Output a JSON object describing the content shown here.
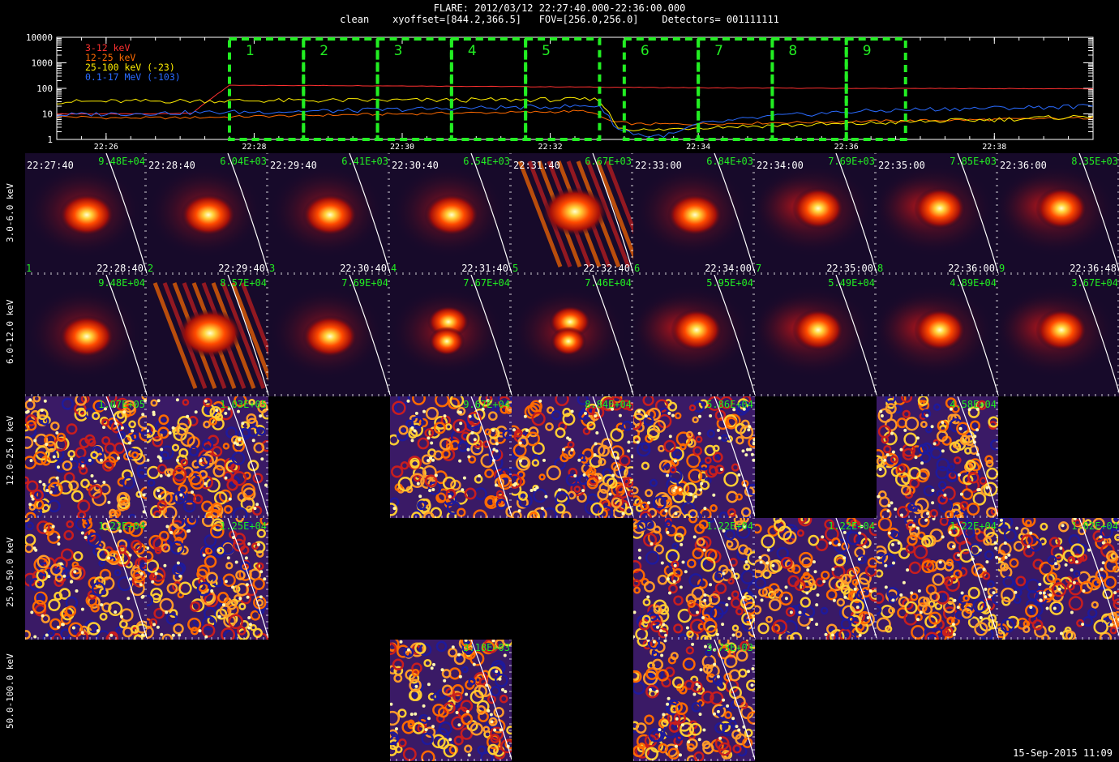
{
  "header": {
    "title_line1": "FLARE: 2012/03/12 22:27:40.000-22:36:00.000",
    "title_line2": "clean    xyoffset=[844.2,366.5]   FOV=[256.0,256.0]    Detectors= 001111111"
  },
  "colors": {
    "low_3_12": "#ff3030",
    "mid_12_25": "#ff6a00",
    "hi_25_100": "#ffee00",
    "gamma": "#2a6bff",
    "box": "#22ee22",
    "maxlabel": "#22ee22"
  },
  "chart_data": [
    {
      "type": "line",
      "title": "",
      "ylabel": "",
      "y_scale": "log",
      "ylim": [
        1,
        10000
      ],
      "xlim": [
        "22:25:20",
        "22:39:20"
      ],
      "x_ticks": [
        "22:26",
        "22:28",
        "22:30",
        "22:32",
        "22:34",
        "22:36",
        "22:38"
      ],
      "y_ticks": [
        "1",
        "10",
        "100",
        "1000",
        "10000"
      ],
      "legend_placement": "top-left",
      "series": [
        {
          "name": "3-12 keV",
          "color_key": "low_3_12",
          "x": [
            "22:25:20",
            "22:26:00",
            "22:26:40",
            "22:27:10",
            "22:27:30",
            "22:27:40",
            "22:28:40",
            "22:30:00",
            "22:32:00",
            "22:34:00",
            "22:36:00",
            "22:38:00",
            "22:39:20"
          ],
          "y": [
            10,
            10,
            10,
            11,
            60,
            130,
            130,
            125,
            115,
            105,
            100,
            98,
            96
          ]
        },
        {
          "name": "12-25 keV",
          "color_key": "mid_12_25",
          "x": [
            "22:25:20",
            "22:26:00",
            "22:27:00",
            "22:28:00",
            "22:29:00",
            "22:30:00",
            "22:31:00",
            "22:32:00",
            "22:32:30",
            "22:32:50",
            "22:33:10",
            "22:34:00",
            "22:35:00",
            "22:36:00",
            "22:37:00",
            "22:38:00",
            "22:39:20"
          ],
          "y": [
            8,
            7,
            7,
            8,
            9,
            10,
            11,
            12,
            13,
            5,
            4,
            4,
            4.5,
            5,
            5.5,
            6,
            7
          ]
        },
        {
          "name": "25-100 keV (-23)",
          "color_key": "hi_25_100",
          "x": [
            "22:25:20",
            "22:27:00",
            "22:28:00",
            "22:30:00",
            "22:32:00",
            "22:32:40",
            "22:32:55",
            "22:33:20",
            "22:34:00",
            "22:35:00",
            "22:36:00",
            "22:37:00",
            "22:38:00",
            "22:39:20"
          ],
          "y": [
            30,
            32,
            33,
            34,
            36,
            36,
            3,
            2.2,
            3,
            3.5,
            4,
            5,
            6,
            8
          ]
        },
        {
          "name": "0.1-17 MeV (-103)",
          "color_key": "gamma",
          "x": [
            "22:25:20",
            "22:26:00",
            "22:27:00",
            "22:28:00",
            "22:29:00",
            "22:30:00",
            "22:31:00",
            "22:32:00",
            "22:32:40",
            "22:32:55",
            "22:33:20",
            "22:33:40",
            "22:34:00",
            "22:35:00",
            "22:36:00",
            "22:37:00",
            "22:38:00",
            "22:39:20"
          ],
          "y": [
            9,
            10,
            11,
            12,
            13,
            15,
            17,
            19,
            21,
            2.5,
            1.3,
            1.6,
            4,
            8,
            12,
            15,
            17,
            20
          ]
        }
      ],
      "annotations": [
        "1",
        "2",
        "3",
        "4",
        "5",
        "6",
        "7",
        "8",
        "9"
      ],
      "interval_boxes": [
        [
          "22:27:40",
          "22:28:40"
        ],
        [
          "22:28:40",
          "22:29:40"
        ],
        [
          "22:29:40",
          "22:30:40"
        ],
        [
          "22:30:40",
          "22:31:40"
        ],
        [
          "22:31:40",
          "22:32:40"
        ],
        [
          "22:33:00",
          "22:34:00"
        ],
        [
          "22:34:00",
          "22:35:00"
        ],
        [
          "22:35:00",
          "22:36:00"
        ],
        [
          "22:36:00",
          "22:36:48"
        ]
      ]
    },
    {
      "type": "heatmap",
      "row_labels": [
        "3.0-6.0 keV",
        "6.0-12.0 keV",
        "12.0-25.0 keV",
        "25.0-50.0 keV",
        "50.0-100.0 keV"
      ],
      "column_start_times": [
        "22:27:40",
        "22:28:40",
        "22:29:40",
        "22:30:40",
        "22:31:40",
        "22:33:00",
        "22:34:00",
        "22:35:00",
        "22:36:00"
      ],
      "column_end_times": [
        "22:28:40",
        "22:29:40",
        "22:30:40",
        "22:31:40",
        "22:32:40",
        "22:34:00",
        "22:35:00",
        "22:36:00",
        "22:36:48"
      ],
      "column_numbers": [
        "1",
        "2",
        "3",
        "4",
        "5",
        "6",
        "7",
        "8",
        "9"
      ],
      "panels": [
        {
          "row": 0,
          "col": 0,
          "max": "9.48E+04",
          "kind": "source"
        },
        {
          "row": 0,
          "col": 1,
          "max": "6.04E+03",
          "kind": "source"
        },
        {
          "row": 0,
          "col": 2,
          "max": "6.41E+03",
          "kind": "source"
        },
        {
          "row": 0,
          "col": 3,
          "max": "6.54E+03",
          "kind": "source"
        },
        {
          "row": 0,
          "col": 4,
          "max": "6.67E+03",
          "kind": "streaky"
        },
        {
          "row": 0,
          "col": 5,
          "max": "6.84E+03",
          "kind": "source"
        },
        {
          "row": 0,
          "col": 6,
          "max": "7.69E+03",
          "kind": "diffuse"
        },
        {
          "row": 0,
          "col": 7,
          "max": "7.85E+03",
          "kind": "diffuse"
        },
        {
          "row": 0,
          "col": 8,
          "max": "8.35E+03",
          "kind": "diffuse"
        },
        {
          "row": 1,
          "col": 0,
          "max": "9.48E+04",
          "kind": "source"
        },
        {
          "row": 1,
          "col": 1,
          "max": "8.57E+04",
          "kind": "streaky"
        },
        {
          "row": 1,
          "col": 2,
          "max": "7.69E+04",
          "kind": "source"
        },
        {
          "row": 1,
          "col": 3,
          "max": "7.67E+04",
          "kind": "double"
        },
        {
          "row": 1,
          "col": 4,
          "max": "7.46E+04",
          "kind": "double"
        },
        {
          "row": 1,
          "col": 5,
          "max": "5.95E+04",
          "kind": "diffuse"
        },
        {
          "row": 1,
          "col": 6,
          "max": "5.49E+04",
          "kind": "diffuse"
        },
        {
          "row": 1,
          "col": 7,
          "max": "4.89E+04",
          "kind": "diffuse"
        },
        {
          "row": 1,
          "col": 8,
          "max": "3.67E+04",
          "kind": "diffuse"
        },
        {
          "row": 2,
          "col": 0,
          "max": "1.07E+05",
          "kind": "noise"
        },
        {
          "row": 2,
          "col": 1,
          "max": "1.03E+05",
          "kind": "noise"
        },
        {
          "row": 2,
          "col": 3,
          "max": "9.67E+04",
          "kind": "noise"
        },
        {
          "row": 2,
          "col": 4,
          "max": "8.84E+04",
          "kind": "noise"
        },
        {
          "row": 2,
          "col": 5,
          "max": "5.86E+04",
          "kind": "noise"
        },
        {
          "row": 2,
          "col": 7,
          "max": "4.58E+04",
          "kind": "noise"
        },
        {
          "row": 3,
          "col": 0,
          "max": "1.22E+04",
          "kind": "noise"
        },
        {
          "row": 3,
          "col": 1,
          "max": "1.25E+04",
          "kind": "noise"
        },
        {
          "row": 3,
          "col": 5,
          "max": "1.22E+04",
          "kind": "noise"
        },
        {
          "row": 3,
          "col": 6,
          "max": "1.22E+04",
          "kind": "noise"
        },
        {
          "row": 3,
          "col": 7,
          "max": "1.22E+04",
          "kind": "noise"
        },
        {
          "row": 3,
          "col": 8,
          "max": "1.02E+04",
          "kind": "noise"
        },
        {
          "row": 4,
          "col": 3,
          "max": "3.18E+03",
          "kind": "noise"
        },
        {
          "row": 4,
          "col": 5,
          "max": "3.73E+03",
          "kind": "noise"
        }
      ]
    }
  ],
  "footer": {
    "timestamp": "15-Sep-2015 11:09"
  }
}
